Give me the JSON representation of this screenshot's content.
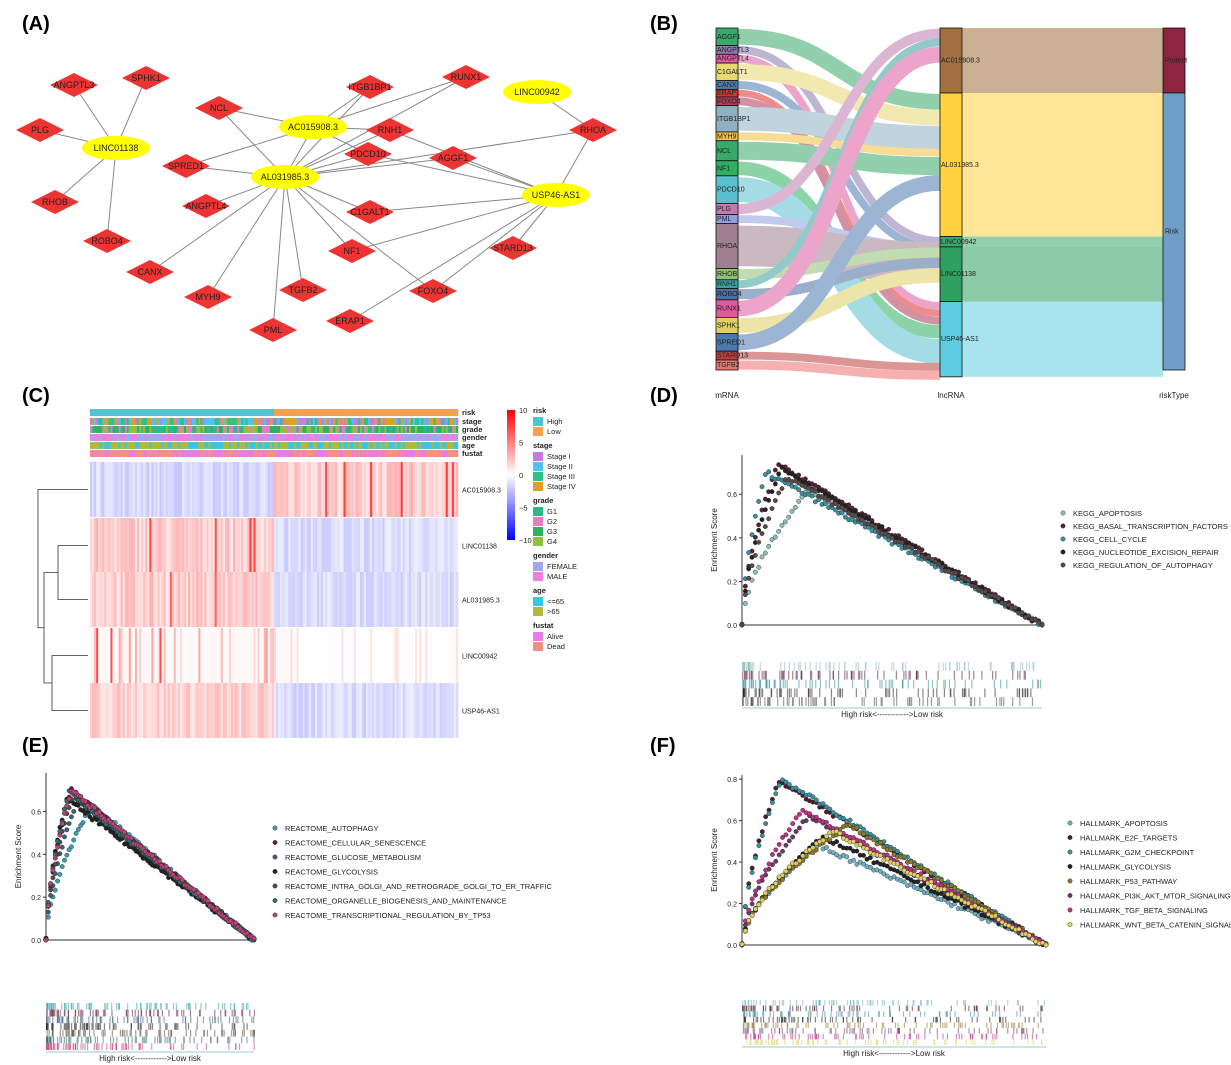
{
  "panels": {
    "A": "(A)",
    "B": "(B)",
    "C": "(C)",
    "D": "(D)",
    "E": "(E)",
    "F": "(F)"
  },
  "network": {
    "lncrnas": [
      "LINC01138",
      "AC015908.3",
      "AL031985.3",
      "LINC00942",
      "USP46-AS1"
    ],
    "mrnas": [
      "ANGPTL3",
      "SPHK1",
      "PLG",
      "RHOB",
      "ROBO4",
      "NCL",
      "ITGB1BP1",
      "RUNX1",
      "RNH1",
      "RHOA",
      "SPRED1",
      "PDCD10",
      "AGGF1",
      "ANGPTL4",
      "C1GALT1",
      "CANX",
      "NF1",
      "STARD13",
      "MYH9",
      "TGFB2",
      "FOXO4",
      "PML",
      "ERAP1"
    ],
    "edges": [
      [
        "LINC01138",
        "ANGPTL3"
      ],
      [
        "LINC01138",
        "SPHK1"
      ],
      [
        "LINC01138",
        "PLG"
      ],
      [
        "LINC01138",
        "RHOB"
      ],
      [
        "LINC01138",
        "ROBO4"
      ],
      [
        "AC015908.3",
        "NCL"
      ],
      [
        "AC015908.3",
        "ITGB1BP1"
      ],
      [
        "AC015908.3",
        "RUNX1"
      ],
      [
        "AC015908.3",
        "RNH1"
      ],
      [
        "AC015908.3",
        "SPRED1"
      ],
      [
        "AC015908.3",
        "PDCD10"
      ],
      [
        "AC015908.3",
        "AL031985.3"
      ],
      [
        "AL031985.3",
        "NCL"
      ],
      [
        "AL031985.3",
        "ITGB1BP1"
      ],
      [
        "AL031985.3",
        "RUNX1"
      ],
      [
        "AL031985.3",
        "RNH1"
      ],
      [
        "AL031985.3",
        "SPRED1"
      ],
      [
        "AL031985.3",
        "PDCD10"
      ],
      [
        "AL031985.3",
        "AGGF1"
      ],
      [
        "AL031985.3",
        "ANGPTL4"
      ],
      [
        "AL031985.3",
        "C1GALT1"
      ],
      [
        "AL031985.3",
        "CANX"
      ],
      [
        "AL031985.3",
        "NF1"
      ],
      [
        "AL031985.3",
        "MYH9"
      ],
      [
        "AL031985.3",
        "TGFB2"
      ],
      [
        "AL031985.3",
        "PML"
      ],
      [
        "AL031985.3",
        "FOXO4"
      ],
      [
        "AL031985.3",
        "RHOA"
      ],
      [
        "LINC00942",
        "RHOA"
      ],
      [
        "USP46-AS1",
        "RHOA"
      ],
      [
        "USP46-AS1",
        "AGGF1"
      ],
      [
        "USP46-AS1",
        "PDCD10"
      ],
      [
        "USP46-AS1",
        "C1GALT1"
      ],
      [
        "USP46-AS1",
        "NF1"
      ],
      [
        "USP46-AS1",
        "STARD13"
      ],
      [
        "USP46-AS1",
        "FOXO4"
      ],
      [
        "USP46-AS1",
        "ERAP1"
      ],
      [
        "USP46-AS1",
        "RNH1"
      ]
    ]
  },
  "sankey": {
    "mrna_nodes": [
      "AGGF1",
      "ANGPTL3",
      "ANGPTL4",
      "C1GALT1",
      "CANX",
      "ERAP1",
      "FOXO4",
      "ITGB1BP1",
      "MYH9",
      "NCL",
      "NF1",
      "PDCD10",
      "PLG",
      "PML",
      "RHOA",
      "RHOB",
      "RNH1",
      "ROBO4",
      "RUNX1",
      "SPHK1",
      "SPRED1",
      "STARD13",
      "TGFB2"
    ],
    "lncrna_nodes": [
      "AC015908.3",
      "AL031985.3",
      "LINC00942",
      "LINC01138",
      "USP46-AS1"
    ],
    "risk_nodes": [
      "Protect",
      "Risk"
    ],
    "axis_labels": [
      "mRNA",
      "lncRNA",
      "riskType"
    ]
  },
  "heatmap": {
    "track_labels": [
      "risk",
      "stage",
      "grade",
      "gender",
      "age",
      "fustat"
    ],
    "rows": [
      "AC015908.3",
      "LINC01138",
      "AL031985.3",
      "LINC00942",
      "USP46-AS1"
    ],
    "scale_ticks": [
      "10",
      "5",
      "0",
      "−5",
      "−10"
    ],
    "legends": [
      {
        "title": "risk",
        "items": [
          [
            "High",
            "#4ec5d1"
          ],
          [
            "Low",
            "#f5a04f"
          ]
        ]
      },
      {
        "title": "stage",
        "items": [
          [
            "Stage I",
            "#c77be0"
          ],
          [
            "Stage II",
            "#4fc3f0"
          ],
          [
            "Stage III",
            "#2ec28a"
          ],
          [
            "Stage IV",
            "#e0a020"
          ]
        ]
      },
      {
        "title": "grade",
        "items": [
          [
            "G1",
            "#2fb88a"
          ],
          [
            "G2",
            "#e67bc6"
          ],
          [
            "G3",
            "#2fb060"
          ],
          [
            "G4",
            "#8fc23c"
          ]
        ]
      },
      {
        "title": "gender",
        "items": [
          [
            "FEMALE",
            "#a0a6f0"
          ],
          [
            "MALE",
            "#f07de0"
          ]
        ]
      },
      {
        "title": "age",
        "items": [
          [
            "<=65",
            "#37c6e6"
          ],
          [
            ">65",
            "#b2b83a"
          ]
        ]
      },
      {
        "title": "fustat",
        "items": [
          [
            "Alive",
            "#e67de6"
          ],
          [
            "Dead",
            "#f4907f"
          ]
        ]
      }
    ]
  },
  "gsea_common": {
    "ylabel": "Enrichment Score",
    "bottom_label": "High risk<------------>Low risk"
  },
  "chart_data": [
    {
      "type": "scatter",
      "panel": "D",
      "ylabel": "Enrichment Score",
      "xlabel": "High risk<------------>Low risk",
      "yticks": [
        "0.0",
        "0.2",
        "0.4",
        "0.6"
      ],
      "ylim": [
        0,
        0.78
      ],
      "series": [
        {
          "name": "KEGG_APOPTOSIS",
          "color": "#8fbcbc",
          "peak": 0.62,
          "peak_at": 0.22
        },
        {
          "name": "KEGG_BASAL_TRANSCRIPTION_FACTORS",
          "color": "#5a1f3a",
          "peak": 0.74,
          "peak_at": 0.12
        },
        {
          "name": "KEGG_CELL_CYCLE",
          "color": "#3a8fa0",
          "peak": 0.7,
          "peak_at": 0.08
        },
        {
          "name": "KEGG_NUCLEOTIDE_EXCISION_REPAIR",
          "color": "#222222",
          "peak": 0.72,
          "peak_at": 0.13
        },
        {
          "name": "KEGG_REGULATION_OF_AUTOPHAGY",
          "color": "#5a4a4a",
          "peak": 0.68,
          "peak_at": 0.15
        }
      ]
    },
    {
      "type": "scatter",
      "panel": "E",
      "ylabel": "Enrichment Score",
      "xlabel": "High risk<------------>Low risk",
      "yticks": [
        "0.0",
        "0.2",
        "0.4",
        "0.6"
      ],
      "ylim": [
        0,
        0.78
      ],
      "series": [
        {
          "name": "REACTOME_AUTOPHAGY",
          "color": "#3a9fb0",
          "peak": 0.63,
          "peak_at": 0.22
        },
        {
          "name": "REACTOME_CELLULAR_SENESCENCE",
          "color": "#6a1f3a",
          "peak": 0.7,
          "peak_at": 0.12
        },
        {
          "name": "REACTOME_GLUCOSE_METABOLISM",
          "color": "#3a5f80",
          "peak": 0.65,
          "peak_at": 0.15
        },
        {
          "name": "REACTOME_GLYCOLYSIS",
          "color": "#222222",
          "peak": 0.66,
          "peak_at": 0.1
        },
        {
          "name": "REACTOME_INTRA_GOLGI_AND_RETROGRADE_GOLGI_TO_ER_TRAFFIC",
          "color": "#5a4a3a",
          "peak": 0.68,
          "peak_at": 0.13
        },
        {
          "name": "REACTOME_ORGANELLE_BIOGENESIS_AND_MAINTENANCE",
          "color": "#2f6f70",
          "peak": 0.69,
          "peak_at": 0.11
        },
        {
          "name": "REACTOME_TRANSCRIPTIONAL_REGULATION_BY_TP53",
          "color": "#c0407a",
          "peak": 0.7,
          "peak_at": 0.12
        }
      ]
    },
    {
      "type": "scatter",
      "panel": "F",
      "ylabel": "Enrichment Score",
      "xlabel": "High risk<------------>Low risk",
      "yticks": [
        "0.0",
        "0.2",
        "0.4",
        "0.6",
        "0.8"
      ],
      "ylim": [
        0,
        0.82
      ],
      "series": [
        {
          "name": "HALLMARK_APOPTOSIS",
          "color": "#6fb0c0",
          "peak": 0.48,
          "peak_at": 0.25
        },
        {
          "name": "HALLMARK_E2F_TARGETS",
          "color": "#4a1f30",
          "peak": 0.79,
          "peak_at": 0.12
        },
        {
          "name": "HALLMARK_G2M_CHECKPOINT",
          "color": "#3a8fa0",
          "peak": 0.8,
          "peak_at": 0.13
        },
        {
          "name": "HALLMARK_GLYCOLYSIS",
          "color": "#222222",
          "peak": 0.52,
          "peak_at": 0.27
        },
        {
          "name": "HALLMARK_P53_PATHWAY",
          "color": "#8a7a30",
          "peak": 0.58,
          "peak_at": 0.35
        },
        {
          "name": "HALLMARK_PI3K_AKT_MTOR_SIGNALING",
          "color": "#6a3a6a",
          "peak": 0.62,
          "peak_at": 0.22
        },
        {
          "name": "HALLMARK_TGF_BETA_SIGNALING",
          "color": "#c02f8a",
          "peak": 0.65,
          "peak_at": 0.2
        },
        {
          "name": "HALLMARK_WNT_BETA_CATENIN_SIGNALING",
          "color": "#e0d060",
          "peak": 0.55,
          "peak_at": 0.3
        }
      ]
    }
  ]
}
